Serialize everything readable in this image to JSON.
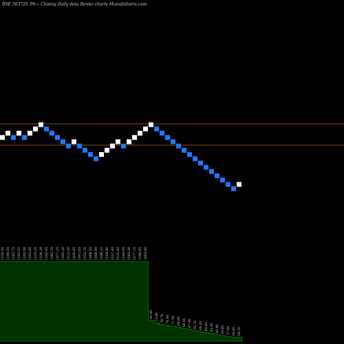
{
  "header": "BSE 503725 3%~ Closing Daily data  Renko  charts MunafaSutra.com",
  "colors": {
    "background": "#000000",
    "up_brick": "#ffffff",
    "down_brick": "#1e78ff",
    "reference_line": "#b5651d",
    "volume_area": "#003300",
    "volume_outline": "#00aa00",
    "label_text": "#cfcfcf"
  },
  "chart_data": {
    "type": "renko",
    "title": "BSE 503725 3%~ Closing Daily data  Renko  charts MunafaSutra.com",
    "grid": false,
    "reference_lines": [
      1.0,
      0.0
    ],
    "bricks": [
      {
        "dir": "up",
        "level": 1
      },
      {
        "dir": "up",
        "level": 2
      },
      {
        "dir": "down",
        "level": 1
      },
      {
        "dir": "up",
        "level": 2
      },
      {
        "dir": "down",
        "level": 1
      },
      {
        "dir": "up",
        "level": 2
      },
      {
        "dir": "up",
        "level": 3
      },
      {
        "dir": "up",
        "level": 4
      },
      {
        "dir": "down",
        "level": 3
      },
      {
        "dir": "down",
        "level": 2
      },
      {
        "dir": "down",
        "level": 1
      },
      {
        "dir": "down",
        "level": 0
      },
      {
        "dir": "down",
        "level": -1
      },
      {
        "dir": "up",
        "level": 0
      },
      {
        "dir": "down",
        "level": -1
      },
      {
        "dir": "down",
        "level": -2
      },
      {
        "dir": "down",
        "level": -3
      },
      {
        "dir": "down",
        "level": -4
      },
      {
        "dir": "up",
        "level": -3
      },
      {
        "dir": "up",
        "level": -2
      },
      {
        "dir": "up",
        "level": -1
      },
      {
        "dir": "up",
        "level": 0
      },
      {
        "dir": "down",
        "level": -1
      },
      {
        "dir": "up",
        "level": 0
      },
      {
        "dir": "up",
        "level": 1
      },
      {
        "dir": "up",
        "level": 2
      },
      {
        "dir": "up",
        "level": 3
      },
      {
        "dir": "up",
        "level": 4
      },
      {
        "dir": "down",
        "level": 3
      },
      {
        "dir": "down",
        "level": 2
      },
      {
        "dir": "down",
        "level": 1
      },
      {
        "dir": "down",
        "level": 0
      },
      {
        "dir": "down",
        "level": -1
      },
      {
        "dir": "down",
        "level": -2
      },
      {
        "dir": "down",
        "level": -3
      },
      {
        "dir": "down",
        "level": -4
      },
      {
        "dir": "down",
        "level": -5
      },
      {
        "dir": "down",
        "level": -6
      },
      {
        "dir": "down",
        "level": -7
      },
      {
        "dir": "down",
        "level": -8
      },
      {
        "dir": "down",
        "level": -9
      },
      {
        "dir": "down",
        "level": -10
      },
      {
        "dir": "down",
        "level": -11
      },
      {
        "dir": "up",
        "level": -10
      }
    ],
    "volume_values": [
      1,
      1,
      1,
      1,
      1,
      1,
      1,
      1,
      1,
      1,
      1,
      1,
      1,
      1,
      1,
      1,
      1,
      1,
      1,
      1,
      1,
      1,
      1,
      1,
      1,
      1,
      1,
      0.26,
      0.23,
      0.21,
      0.2,
      0.19,
      0.18,
      0.16,
      0.15,
      0.13,
      0.12,
      0.11,
      0.1,
      0.08,
      0.07,
      0.06,
      0.05,
      0.05
    ],
    "volume_labels": [
      "1232.50",
      "1246.55",
      "1263.75",
      "1282.55",
      "1292.50",
      "1303.85",
      "1325.25",
      "1336.30",
      "1345.95",
      "1362.10",
      "1377.25",
      "1395.20",
      "1412.30",
      "1426.85",
      "1441.65",
      "1452.70",
      "1468.55",
      "1480.00",
      "1496.25",
      "1508.80",
      "1521.40",
      "1535.60",
      "1549.95",
      "1563.20",
      "1577.10",
      "1590.85",
      "1603.60",
      "90.90",
      "73.80",
      "76.70",
      "74.80",
      "71.50",
      "69.80",
      "68.45",
      "67.90",
      "65.70",
      "64.20",
      "63.85",
      "62.40",
      "60.90",
      "59.85",
      "57.60",
      "56.45",
      "58.10"
    ]
  }
}
